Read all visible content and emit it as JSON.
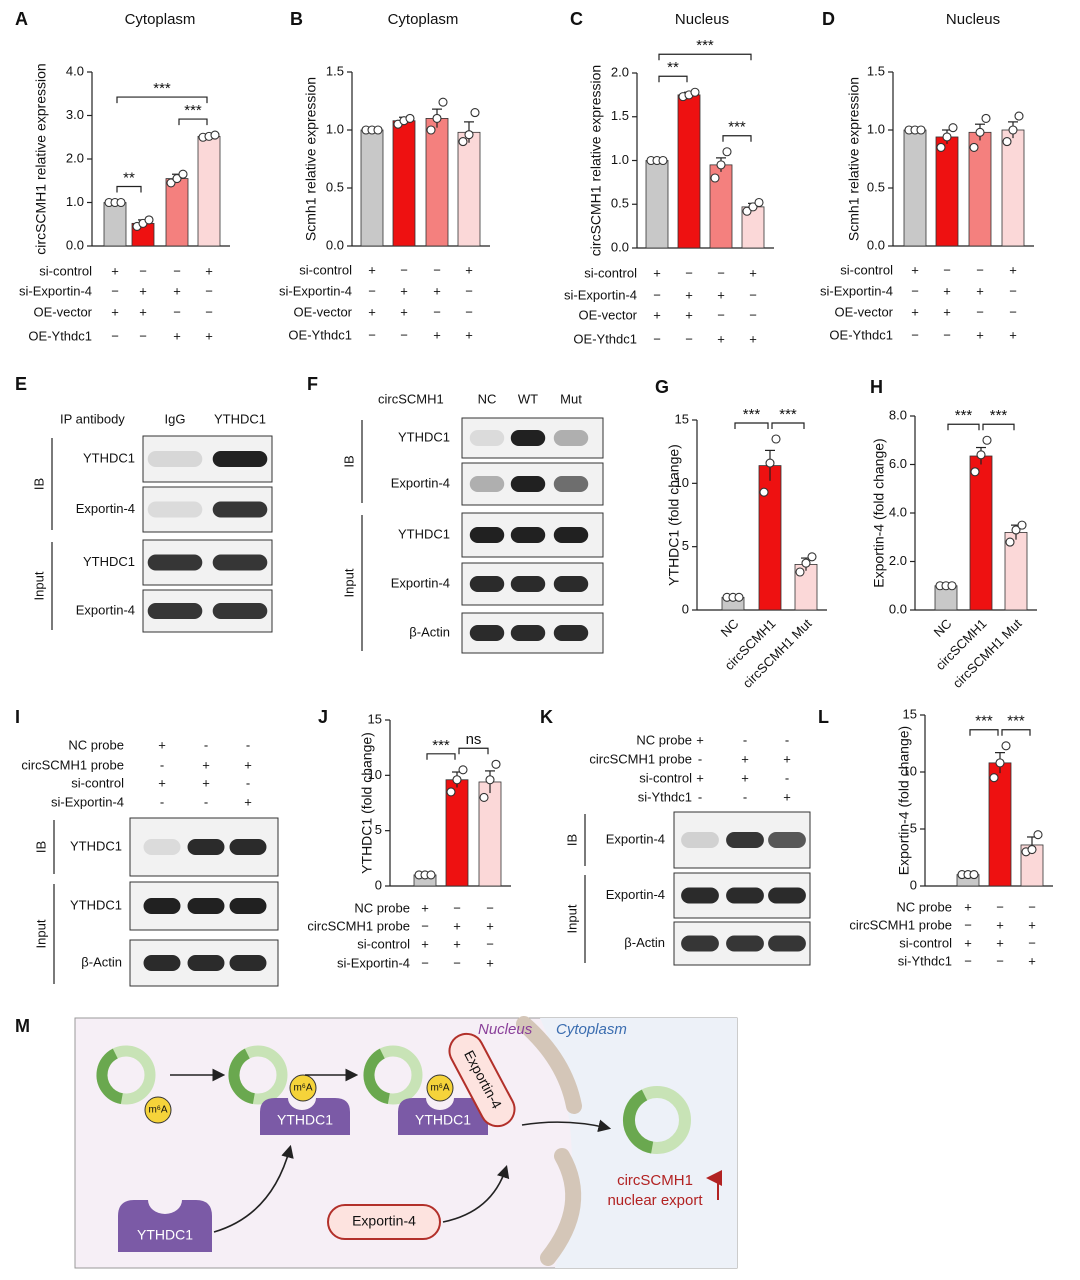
{
  "chart_data": [
    {
      "type": "bar",
      "panel": "A",
      "title": "Cytoplasm",
      "ylabel": "circSCMH1 relative expression",
      "categories": [
        null,
        null,
        null,
        null
      ],
      "values": [
        1.0,
        0.52,
        1.55,
        2.52
      ],
      "errors": [
        0.02,
        0.08,
        0.1,
        0.05
      ],
      "points": [
        [
          1,
          1,
          1
        ],
        [
          0.45,
          0.52,
          0.6
        ],
        [
          1.45,
          1.55,
          1.65
        ],
        [
          2.5,
          2.52,
          2.55
        ]
      ],
      "colors": [
        "#c8c8c8",
        "#ee1111",
        "#f4807e",
        "#fbd8d8"
      ],
      "ylim": [
        0,
        4
      ],
      "yticks": [
        {
          "value": 0,
          "label": "0.0"
        },
        {
          "value": 1,
          "label": "1.0"
        },
        {
          "value": 2,
          "label": "2.0"
        },
        {
          "value": 3,
          "label": "3.0"
        },
        {
          "value": 4,
          "label": "4.0"
        }
      ],
      "conditions": [
        {
          "name": "si-control",
          "signs": [
            "+",
            "−",
            "−",
            "+"
          ]
        },
        {
          "name": "si-Exportin-4",
          "signs": [
            "−",
            "+",
            "+",
            "−"
          ]
        },
        {
          "name": "OE-vector",
          "signs": [
            "+",
            "+",
            "−",
            "−"
          ]
        },
        {
          "name": "OE-Ythdc1",
          "signs": [
            "−",
            "−",
            "+",
            "+"
          ]
        }
      ],
      "annotations": [
        {
          "text": "**",
          "bars": [
            0,
            1
          ]
        },
        {
          "text": "***",
          "bars": [
            2,
            3
          ]
        },
        {
          "text": "***",
          "bars": [
            0,
            3
          ]
        }
      ]
    },
    {
      "type": "bar",
      "panel": "B",
      "title": "Cytoplasm",
      "ylabel": "Scmh1 relative expression",
      "categories": [
        null,
        null,
        null,
        null
      ],
      "values": [
        1.0,
        1.08,
        1.1,
        0.98
      ],
      "errors": [
        0.01,
        0.03,
        0.08,
        0.09
      ],
      "points": [
        [
          1,
          1,
          1
        ],
        [
          1.05,
          1.08,
          1.1
        ],
        [
          1.0,
          1.1,
          1.24
        ],
        [
          0.9,
          0.96,
          1.15
        ]
      ],
      "colors": [
        "#c8c8c8",
        "#ee1111",
        "#f4807e",
        "#fbd8d8"
      ],
      "ylim": [
        0,
        1.5
      ],
      "yticks": [
        {
          "value": 0,
          "label": "0.0"
        },
        0.5,
        {
          "value": 1,
          "label": "1.0"
        },
        1.5
      ],
      "conditions": [
        {
          "name": "si-control",
          "signs": [
            "+",
            "−",
            "−",
            "+"
          ]
        },
        {
          "name": "si-Exportin-4",
          "signs": [
            "−",
            "+",
            "+",
            "−"
          ]
        },
        {
          "name": "OE-vector",
          "signs": [
            "+",
            "+",
            "−",
            "−"
          ]
        },
        {
          "name": "OE-Ythdc1",
          "signs": [
            "−",
            "−",
            "+",
            "+"
          ]
        }
      ],
      "annotations": []
    },
    {
      "type": "bar",
      "panel": "C",
      "title": "Nucleus",
      "ylabel": "circSCMH1 relative expression",
      "categories": [
        null,
        null,
        null,
        null
      ],
      "values": [
        1.0,
        1.75,
        0.95,
        0.47
      ],
      "errors": [
        0.01,
        0.03,
        0.08,
        0.04
      ],
      "points": [
        [
          1,
          1,
          1
        ],
        [
          1.73,
          1.75,
          1.78
        ],
        [
          0.8,
          0.95,
          1.1
        ],
        [
          0.42,
          0.47,
          0.52
        ]
      ],
      "colors": [
        "#c8c8c8",
        "#ee1111",
        "#f4807e",
        "#fbd8d8"
      ],
      "ylim": [
        0,
        2
      ],
      "yticks": [
        {
          "value": 0,
          "label": "0.0"
        },
        0.5,
        {
          "value": 1,
          "label": "1.0"
        },
        1.5,
        {
          "value": 2,
          "label": "2.0"
        }
      ],
      "conditions": [
        {
          "name": "si-control",
          "signs": [
            "+",
            "−",
            "−",
            "+"
          ]
        },
        {
          "name": "si-Exportin-4",
          "signs": [
            "−",
            "+",
            "+",
            "−"
          ]
        },
        {
          "name": "OE-vector",
          "signs": [
            "+",
            "+",
            "−",
            "−"
          ]
        },
        {
          "name": "OE-Ythdc1",
          "signs": [
            "−",
            "−",
            "+",
            "+"
          ]
        }
      ],
      "annotations": [
        {
          "text": "**",
          "bars": [
            0,
            1
          ]
        },
        {
          "text": "***",
          "bars": [
            2,
            3
          ]
        },
        {
          "text": "***",
          "bars": [
            0,
            3
          ]
        }
      ]
    },
    {
      "type": "bar",
      "panel": "D",
      "title": "Nucleus",
      "ylabel": "Scmh1 relative expression",
      "categories": [
        null,
        null,
        null,
        null
      ],
      "values": [
        1.0,
        0.94,
        0.98,
        1.0
      ],
      "errors": [
        0.01,
        0.06,
        0.07,
        0.07
      ],
      "points": [
        [
          1,
          1,
          1
        ],
        [
          0.85,
          0.94,
          1.02
        ],
        [
          0.85,
          0.98,
          1.1
        ],
        [
          0.9,
          1.0,
          1.12
        ]
      ],
      "colors": [
        "#c8c8c8",
        "#ee1111",
        "#f4807e",
        "#fbd8d8"
      ],
      "ylim": [
        0,
        1.5
      ],
      "yticks": [
        {
          "value": 0,
          "label": "0.0"
        },
        0.5,
        {
          "value": 1,
          "label": "1.0"
        },
        1.5
      ],
      "conditions": [
        {
          "name": "si-control",
          "signs": [
            "+",
            "−",
            "−",
            "+"
          ]
        },
        {
          "name": "si-Exportin-4",
          "signs": [
            "−",
            "+",
            "+",
            "−"
          ]
        },
        {
          "name": "OE-vector",
          "signs": [
            "+",
            "+",
            "−",
            "−"
          ]
        },
        {
          "name": "OE-Ythdc1",
          "signs": [
            "−",
            "−",
            "+",
            "+"
          ]
        }
      ],
      "annotations": []
    },
    {
      "type": "bar",
      "panel": "G",
      "ylabel": "YTHDC1 (fold change)",
      "categories": [
        "NC",
        "circSCMH1",
        "circSCMH1 Mut"
      ],
      "values": [
        1,
        11.4,
        3.6
      ],
      "errors": [
        0.05,
        1.2,
        0.5
      ],
      "points": [
        [
          1,
          1,
          1
        ],
        [
          9.3,
          11.6,
          13.5
        ],
        [
          3.0,
          3.7,
          4.2
        ]
      ],
      "colors": [
        "#c8c8c8",
        "#ee1111",
        "#fbd8d8"
      ],
      "ylim": [
        0,
        15
      ],
      "yticks": [
        0,
        5,
        10,
        15
      ],
      "annotations": [
        {
          "text": "***",
          "bars": [
            0,
            1
          ]
        },
        {
          "text": "***",
          "bars": [
            1,
            2
          ]
        }
      ]
    },
    {
      "type": "bar",
      "panel": "H",
      "ylabel": "Exportin-4 (fold change)",
      "categories": [
        "NC",
        "circSCMH1",
        "circSCMH1 Mut"
      ],
      "values": [
        1,
        6.35,
        3.2
      ],
      "errors": [
        0.02,
        0.35,
        0.3
      ],
      "points": [
        [
          1,
          1,
          1
        ],
        [
          5.7,
          6.4,
          7.0
        ],
        [
          2.8,
          3.3,
          3.5
        ]
      ],
      "colors": [
        "#c8c8c8",
        "#ee1111",
        "#fbd8d8"
      ],
      "ylim": [
        0,
        8
      ],
      "yticks": [
        {
          "value": 0,
          "label": "0.0"
        },
        {
          "value": 2,
          "label": "2.0"
        },
        {
          "value": 4,
          "label": "4.0"
        },
        {
          "value": 6,
          "label": "6.0"
        },
        {
          "value": 8,
          "label": "8.0"
        }
      ],
      "annotations": [
        {
          "text": "***",
          "bars": [
            0,
            1
          ]
        },
        {
          "text": "***",
          "bars": [
            1,
            2
          ]
        }
      ]
    },
    {
      "type": "bar",
      "panel": "J",
      "ylabel": "YTHDC1 (fold change)",
      "categories": [
        null,
        null,
        null
      ],
      "values": [
        1,
        9.6,
        9.4
      ],
      "errors": [
        0.05,
        0.7,
        1.0
      ],
      "points": [
        [
          1,
          1,
          1
        ],
        [
          8.5,
          9.6,
          10.5
        ],
        [
          8.0,
          9.6,
          11.0
        ]
      ],
      "colors": [
        "#c8c8c8",
        "#ee1111",
        "#fbd8d8"
      ],
      "ylim": [
        0,
        15
      ],
      "yticks": [
        0,
        5,
        10,
        15
      ],
      "conditions": [
        {
          "name": "NC probe",
          "signs": [
            "+",
            "−",
            "−"
          ]
        },
        {
          "name": "circSCMH1 probe",
          "signs": [
            "−",
            "+",
            "+"
          ]
        },
        {
          "name": "si-control",
          "signs": [
            "+",
            "+",
            "−"
          ]
        },
        {
          "name": "si-Exportin-4",
          "signs": [
            "−",
            "−",
            "+"
          ]
        }
      ],
      "annotations": [
        {
          "text": "***",
          "bars": [
            0,
            1
          ]
        },
        {
          "text": "ns",
          "bars": [
            1,
            2
          ]
        }
      ]
    },
    {
      "type": "bar",
      "panel": "L",
      "ylabel": "Exportin-4 (fold change)",
      "categories": [
        null,
        null,
        null
      ],
      "values": [
        1,
        10.8,
        3.6
      ],
      "errors": [
        0.05,
        0.9,
        0.7
      ],
      "points": [
        [
          1,
          1,
          1
        ],
        [
          9.5,
          10.8,
          12.3
        ],
        [
          3.0,
          3.2,
          4.5
        ]
      ],
      "colors": [
        "#c8c8c8",
        "#ee1111",
        "#fbd8d8"
      ],
      "ylim": [
        0,
        15
      ],
      "yticks": [
        0,
        5,
        10,
        15
      ],
      "conditions": [
        {
          "name": "NC probe",
          "signs": [
            "+",
            "−",
            "−"
          ]
        },
        {
          "name": "circSCMH1 probe",
          "signs": [
            "−",
            "+",
            "+"
          ]
        },
        {
          "name": "si-control",
          "signs": [
            "+",
            "+",
            "−"
          ]
        },
        {
          "name": "si-Ythdc1",
          "signs": [
            "−",
            "−",
            "+"
          ]
        }
      ],
      "annotations": [
        {
          "text": "***",
          "bars": [
            0,
            1
          ]
        },
        {
          "text": "***",
          "bars": [
            1,
            2
          ]
        }
      ]
    }
  ],
  "blots": [
    {
      "panel": "E",
      "header": "IP antibody",
      "lanes": [
        "IgG",
        "YTHDC1"
      ],
      "groups": [
        {
          "name": "IB",
          "rows": [
            "YTHDC1",
            "Exportin-4"
          ]
        },
        {
          "name": "Input",
          "rows": [
            "YTHDC1",
            "Exportin-4"
          ]
        }
      ]
    },
    {
      "panel": "F",
      "header": "circSCMH1",
      "lanes": [
        "NC",
        "WT",
        "Mut"
      ],
      "groups": [
        {
          "name": "IB",
          "rows": [
            "YTHDC1",
            "Exportin-4"
          ]
        },
        {
          "name": "Input",
          "rows": [
            "YTHDC1",
            "Exportin-4",
            "β-Actin"
          ]
        }
      ]
    },
    {
      "panel": "I",
      "conditions": [
        {
          "name": "NC probe",
          "signs": [
            "+",
            "-",
            "-"
          ]
        },
        {
          "name": "circSCMH1 probe",
          "signs": [
            "-",
            "+",
            "+"
          ]
        },
        {
          "name": "si-control",
          "signs": [
            "+",
            "+",
            "-"
          ]
        },
        {
          "name": "si-Exportin-4",
          "signs": [
            "-",
            "-",
            "+"
          ]
        }
      ],
      "groups": [
        {
          "name": "IB",
          "rows": [
            "YTHDC1"
          ]
        },
        {
          "name": "Input",
          "rows": [
            "YTHDC1",
            "β-Actin"
          ]
        }
      ]
    },
    {
      "panel": "K",
      "conditions": [
        {
          "name": "NC probe",
          "signs": [
            "+",
            "-",
            "-"
          ]
        },
        {
          "name": "circSCMH1 probe",
          "signs": [
            "-",
            "+",
            "+"
          ]
        },
        {
          "name": "si-control",
          "signs": [
            "+",
            "+",
            "-"
          ]
        },
        {
          "name": "si-Ythdc1",
          "signs": [
            "-",
            "-",
            "+"
          ]
        }
      ],
      "groups": [
        {
          "name": "IB",
          "rows": [
            "Exportin-4"
          ]
        },
        {
          "name": "Input",
          "rows": [
            "Exportin-4",
            "β-Actin"
          ]
        }
      ]
    }
  ],
  "diagram": {
    "panel": "M",
    "compartments": {
      "nucleus": "Nucleus",
      "cytoplasm": "Cytoplasm"
    },
    "modification": [
      "m⁶A",
      "m⁶A",
      "m⁶A"
    ],
    "reader": [
      "YTHDC1",
      "YTHDC1",
      "YTHDC1"
    ],
    "exporter": [
      "Exportin-4",
      "Exportin-4"
    ],
    "result": [
      "circSCMH1",
      "nuclear export"
    ]
  }
}
